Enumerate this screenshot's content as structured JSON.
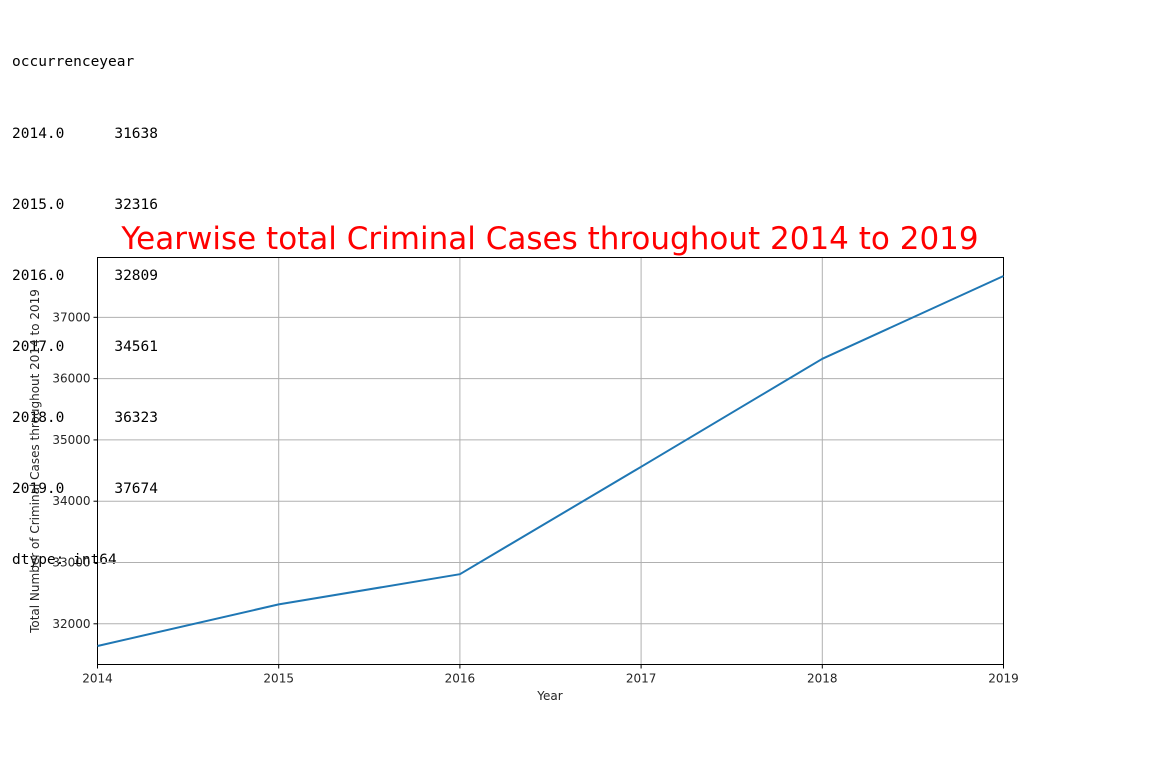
{
  "series_output": {
    "index_name": "occurrenceyear",
    "rows": [
      {
        "year": "2014.0",
        "count": "31638"
      },
      {
        "year": "2015.0",
        "count": "32316"
      },
      {
        "year": "2016.0",
        "count": "32809"
      },
      {
        "year": "2017.0",
        "count": "34561"
      },
      {
        "year": "2018.0",
        "count": "36323"
      },
      {
        "year": "2019.0",
        "count": "37674"
      }
    ],
    "dtype_line": "dtype: int64"
  },
  "chart_data": {
    "type": "line",
    "title": "Yearwise total Criminal Cases throughout 2014 to 2019",
    "title_color": "#ff0000",
    "xlabel": "Year",
    "ylabel": "Total Number of Criminal Cases throughout 2014 to 2019",
    "x": [
      2014,
      2015,
      2016,
      2017,
      2018,
      2019
    ],
    "series": [
      {
        "values": [
          31638,
          32316,
          32809,
          34561,
          36323,
          37674
        ],
        "color": "#1f77b4"
      }
    ],
    "xlim": [
      2014,
      2019
    ],
    "ylim": [
      31336,
      37976
    ],
    "x_ticks": [
      2014,
      2015,
      2016,
      2017,
      2018,
      2019
    ],
    "y_ticks": [
      32000,
      33000,
      34000,
      35000,
      36000,
      37000
    ],
    "grid": true
  }
}
